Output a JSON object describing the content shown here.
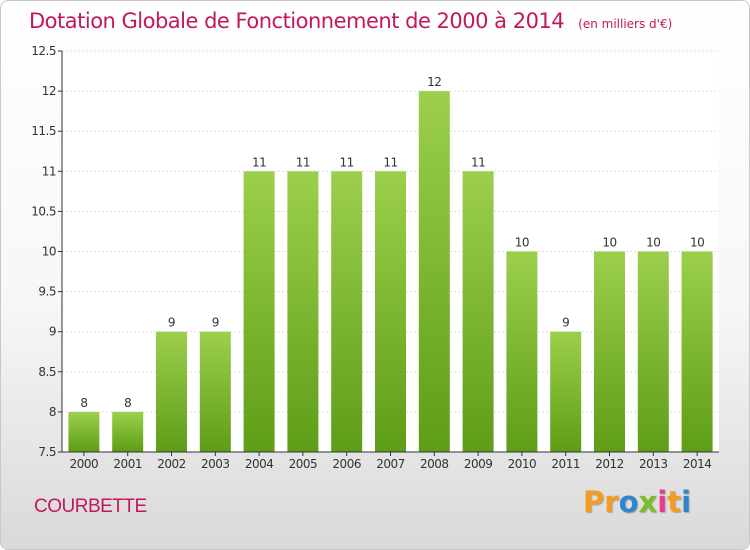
{
  "chart_data": {
    "type": "bar",
    "title": "Dotation Globale de Fonctionnement de 2000 à 2014",
    "unit_note": "(en milliers d'€)",
    "categories": [
      "2000",
      "2001",
      "2002",
      "2003",
      "2004",
      "2005",
      "2006",
      "2007",
      "2008",
      "2009",
      "2010",
      "2011",
      "2012",
      "2013",
      "2014"
    ],
    "values": [
      8,
      8,
      9,
      9,
      11,
      11,
      11,
      11,
      12,
      11,
      10,
      9,
      10,
      10,
      10
    ],
    "ylim": [
      7.5,
      12.5
    ],
    "yticks": [
      7.5,
      8,
      8.5,
      9,
      9.5,
      10,
      10.5,
      11,
      11.5,
      12,
      12.5
    ],
    "ytick_labels": [
      "7.5",
      "8",
      "8.5",
      "9",
      "9.5",
      "10",
      "10.5",
      "11",
      "11.5",
      "12",
      "12.5"
    ],
    "xlabel": "",
    "ylabel": "",
    "grid": true,
    "bar_color_top": "#9ccf4c",
    "bar_color_bottom": "#5e9d17"
  },
  "footer": {
    "commune": "COURBETTE",
    "logo_letters": [
      "P",
      "r",
      "o",
      "x",
      "i",
      "t",
      "i"
    ],
    "logo_colors": [
      "#f39c1f",
      "#f39c1f",
      "#2e86c9",
      "#7dbb2a",
      "#e63b8e",
      "#f39c1f",
      "#2e86c9"
    ]
  },
  "colors": {
    "title": "#c2185b",
    "grid": "#dcdcdc",
    "axis": "#333333",
    "text": "#333333"
  }
}
